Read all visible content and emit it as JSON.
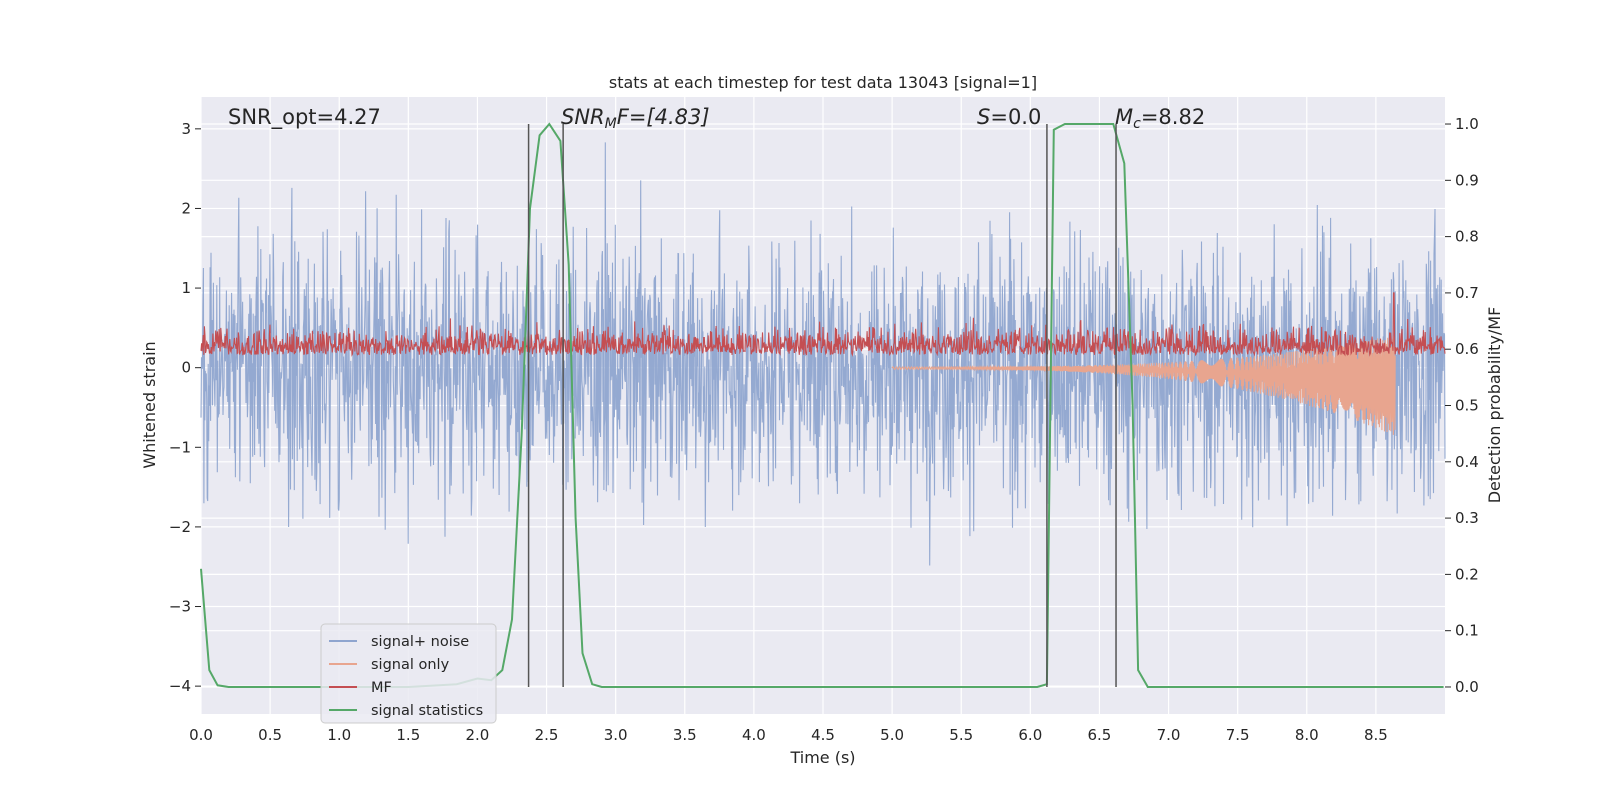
{
  "chart_data": {
    "type": "line",
    "title": "stats at each timestep for test data 13043 [signal=1]",
    "xlabel": "Time (s)",
    "ylabel_left": "Whitened strain",
    "ylabel_right": "Detection probability/MF",
    "xlim": [
      0.0,
      9.0
    ],
    "ylim_left": [
      -4.35,
      3.4
    ],
    "ylim_right": [
      -0.048,
      1.048
    ],
    "x_ticks": [
      "0.0",
      "0.5",
      "1.0",
      "1.5",
      "2.0",
      "2.5",
      "3.0",
      "3.5",
      "4.0",
      "4.5",
      "5.0",
      "5.5",
      "6.0",
      "6.5",
      "7.0",
      "7.5",
      "8.0",
      "8.5"
    ],
    "y_ticks_left": [
      "-4",
      "-3",
      "-2",
      "-1",
      "0",
      "1",
      "2",
      "3"
    ],
    "y_ticks_right": [
      "0.0",
      "0.1",
      "0.2",
      "0.3",
      "0.4",
      "0.5",
      "0.6",
      "0.7",
      "0.8",
      "0.9",
      "1.0"
    ],
    "grid": true,
    "legend_position": "lower-left",
    "annotations": {
      "snr_opt": "SNR_opt=4.27",
      "snr_mf_prefix": "SNR",
      "snr_mf_sub": "M",
      "snr_mf_suffix": "F=[4.83]",
      "s_prefix": "S",
      "s_suffix": "=0.0",
      "mc_prefix": "M",
      "mc_sub": "c",
      "mc_suffix": "=8.82"
    },
    "vertical_lines_x": [
      2.37,
      2.62,
      6.12,
      6.62
    ],
    "series": [
      {
        "name": "signal+ noise",
        "color": "#8fa5cf",
        "axis": "left",
        "style": "dense-noise",
        "std": 0.78,
        "approx_range": [
          -3.5,
          3.05
        ]
      },
      {
        "name": "signal only",
        "color": "#e8a58f",
        "axis": "left",
        "style": "chirp",
        "x_start": 5.0,
        "x_end": 8.64,
        "peak_amplitude": 0.62
      },
      {
        "name": "MF",
        "color": "#c44e52",
        "axis": "right",
        "style": "dense-noise",
        "baseline": 0.6,
        "approx_range": [
          0.57,
          0.7
        ]
      },
      {
        "name": "signal statistics",
        "color": "#55a868",
        "axis": "right",
        "style": "line",
        "points": [
          [
            0.0,
            0.21
          ],
          [
            0.06,
            0.03
          ],
          [
            0.12,
            0.003
          ],
          [
            0.2,
            0.0
          ],
          [
            1.5,
            0.0
          ],
          [
            1.85,
            0.005
          ],
          [
            2.0,
            0.015
          ],
          [
            2.1,
            0.012
          ],
          [
            2.18,
            0.03
          ],
          [
            2.25,
            0.12
          ],
          [
            2.32,
            0.45
          ],
          [
            2.38,
            0.85
          ],
          [
            2.45,
            0.98
          ],
          [
            2.52,
            1.0
          ],
          [
            2.6,
            0.97
          ],
          [
            2.66,
            0.75
          ],
          [
            2.71,
            0.3
          ],
          [
            2.76,
            0.06
          ],
          [
            2.83,
            0.005
          ],
          [
            2.9,
            0.0
          ],
          [
            6.05,
            0.0
          ],
          [
            6.12,
            0.005
          ],
          [
            6.17,
            0.99
          ],
          [
            6.25,
            1.0
          ],
          [
            6.6,
            1.0
          ],
          [
            6.68,
            0.93
          ],
          [
            6.74,
            0.5
          ],
          [
            6.78,
            0.03
          ],
          [
            6.85,
            0.0
          ],
          [
            8.99,
            0.0
          ]
        ]
      }
    ]
  }
}
